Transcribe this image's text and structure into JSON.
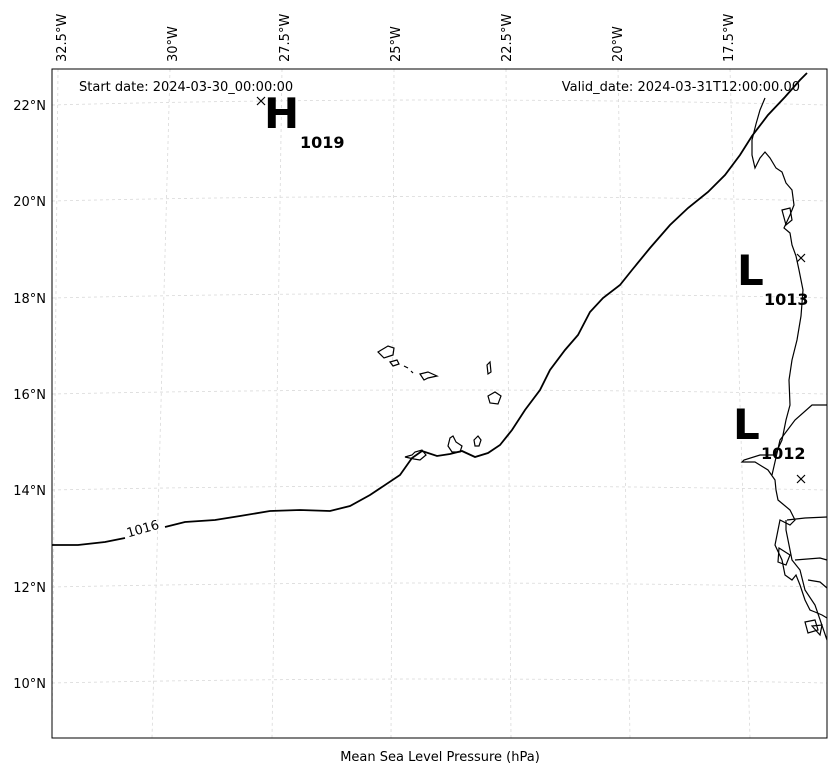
{
  "header": {
    "start_date": "Start date: 2024-03-30_00:00:00",
    "valid_date": "Valid_date: 2024-03-31T12:00:00.00"
  },
  "x_axis_label": "Mean Sea Level Pressure (hPa)",
  "lon_labels": [
    "32.5°W",
    "30°W",
    "27.5°W",
    "25°W",
    "22.5°W",
    "20°W",
    "17.5°W"
  ],
  "lat_labels": [
    "22°N",
    "20°N",
    "18°N",
    "16°N",
    "14°N",
    "12°N",
    "10°N"
  ],
  "isobar": {
    "label": "1016"
  },
  "pressure_centers": [
    {
      "type": "H",
      "value": "1019"
    },
    {
      "type": "L",
      "value": "1013"
    },
    {
      "type": "L",
      "value": "1012"
    }
  ],
  "colors": {
    "isobar": "#000000",
    "coast": "#000000",
    "grid": "#d9d9d9"
  }
}
